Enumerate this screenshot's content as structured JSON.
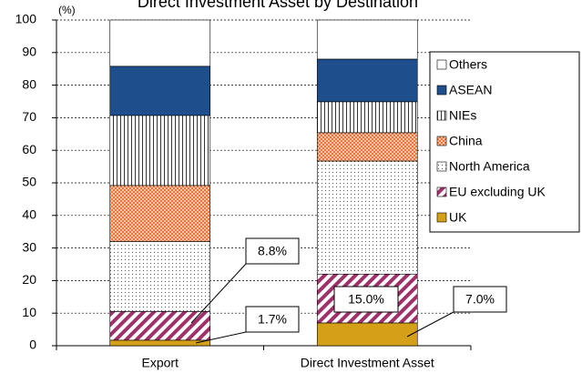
{
  "chart_data": {
    "type": "stacked_bar",
    "title": "Direct Investment Asset by Destination",
    "y_axis_label": "(%)",
    "categories": [
      "Export",
      "Direct Investment Asset"
    ],
    "series": [
      {
        "name": "UK",
        "color": "#d4a017",
        "pattern": "solid",
        "values": [
          1.7,
          7.0
        ],
        "value_labels": [
          "1.7%",
          "7.0%"
        ]
      },
      {
        "name": "EU excluding UK",
        "color": "#a0306a",
        "pattern": "diagonal-stripes",
        "values": [
          8.8,
          15.0
        ],
        "value_labels": [
          "8.8%",
          "15.0%"
        ]
      },
      {
        "name": "North America",
        "color": "#555555",
        "pattern": "dots",
        "values": [
          21.5,
          34.7
        ]
      },
      {
        "name": "China",
        "color": "#e8743b",
        "pattern": "checker",
        "values": [
          17.2,
          8.7
        ]
      },
      {
        "name": "NIEs",
        "color": "#333333",
        "pattern": "vertical-lines",
        "values": [
          21.5,
          9.5
        ]
      },
      {
        "name": "ASEAN",
        "color": "#1f4e8c",
        "pattern": "solid",
        "values": [
          15.1,
          13.1
        ]
      },
      {
        "name": "Others",
        "color": "#ffffff",
        "pattern": "solid",
        "values": [
          14.2,
          12.0
        ]
      }
    ],
    "ylim": [
      0,
      100
    ],
    "yticks": [
      0,
      10,
      20,
      30,
      40,
      50,
      60,
      70,
      80,
      90,
      100
    ],
    "grid": true,
    "legend": "right"
  }
}
